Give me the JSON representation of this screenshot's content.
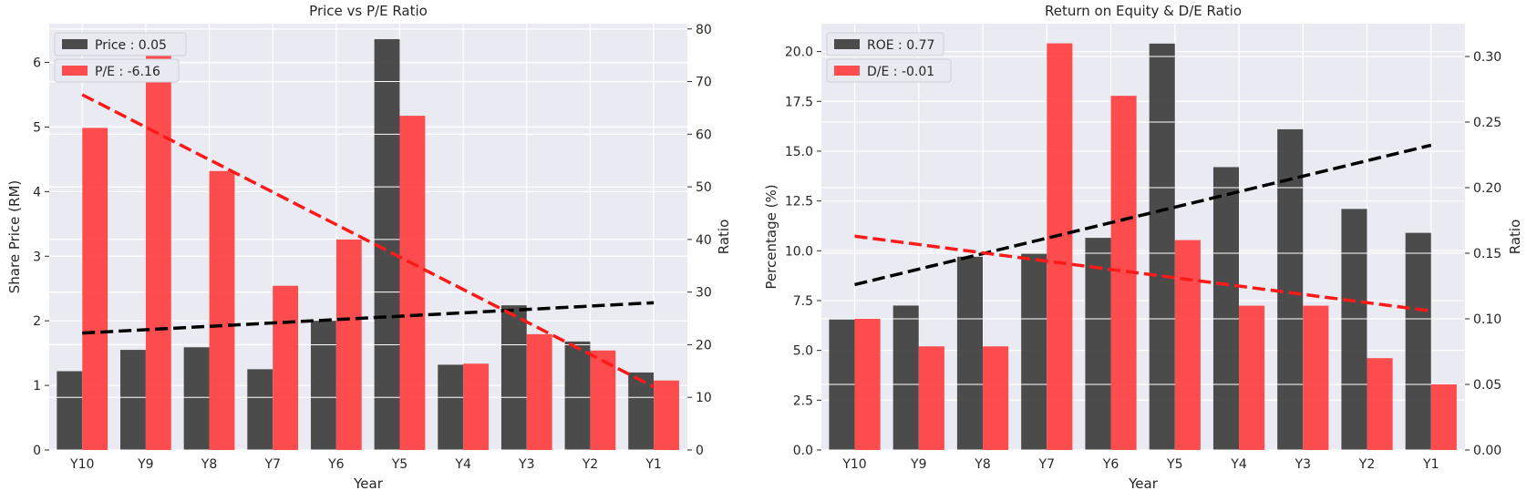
{
  "chart_data": [
    {
      "type": "bar",
      "title": "Price vs P/E Ratio",
      "xlabel": "Year",
      "ylabel": "Share Price (RM)",
      "ylabel_right": "Ratio",
      "categories": [
        "Y10",
        "Y9",
        "Y8",
        "Y7",
        "Y6",
        "Y5",
        "Y4",
        "Y3",
        "Y2",
        "Y1"
      ],
      "ylim": [
        0,
        6.6
      ],
      "ylim_right": [
        0,
        81
      ],
      "yticks": [
        "0",
        "1",
        "2",
        "3",
        "4",
        "5",
        "6"
      ],
      "yticks_right": [
        "0",
        "10",
        "20",
        "30",
        "40",
        "50",
        "60",
        "70",
        "80"
      ],
      "series": [
        {
          "name": "Price : 0.05",
          "axis": "left",
          "color": "#3a3a3a",
          "values": [
            1.22,
            1.55,
            1.59,
            1.25,
            2.0,
            6.36,
            1.32,
            2.24,
            1.68,
            1.2
          ],
          "trend": [
            1.81,
            2.28
          ]
        },
        {
          "name": "P/E : -6.16",
          "axis": "right",
          "color": "#ff3b3b",
          "values": [
            61.2,
            77.5,
            53.0,
            31.2,
            40.0,
            63.5,
            16.4,
            22.0,
            18.9,
            13.2
          ],
          "trend": [
            67.5,
            12.0
          ]
        }
      ],
      "grid": true,
      "legend": "top-left"
    },
    {
      "type": "bar",
      "title": "Return on Equity & D/E Ratio",
      "xlabel": "Year",
      "ylabel": "Percentage (%)",
      "ylabel_right": "Ratio",
      "categories": [
        "Y10",
        "Y9",
        "Y8",
        "Y7",
        "Y6",
        "Y5",
        "Y4",
        "Y3",
        "Y2",
        "Y1"
      ],
      "ylim": [
        0,
        21.4
      ],
      "ylim_right": [
        0,
        0.325
      ],
      "yticks": [
        "0.0",
        "2.5",
        "5.0",
        "7.5",
        "10.0",
        "12.5",
        "15.0",
        "17.5",
        "20.0"
      ],
      "yticks_right": [
        "0.00",
        "0.05",
        "0.10",
        "0.15",
        "0.20",
        "0.25",
        "0.30"
      ],
      "series": [
        {
          "name": "ROE : 0.77",
          "axis": "left",
          "color": "#3a3a3a",
          "values": [
            6.55,
            7.25,
            9.7,
            9.85,
            10.65,
            20.4,
            14.2,
            16.1,
            12.1,
            10.9
          ],
          "trend": [
            8.3,
            15.3
          ]
        },
        {
          "name": "D/E : -0.01",
          "axis": "right",
          "color": "#ff3b3b",
          "values": [
            0.1,
            0.079,
            0.079,
            0.31,
            0.27,
            0.16,
            0.11,
            0.11,
            0.07,
            0.05
          ],
          "trend": [
            0.163,
            0.106
          ]
        }
      ],
      "grid": true,
      "legend": "top-left"
    }
  ]
}
